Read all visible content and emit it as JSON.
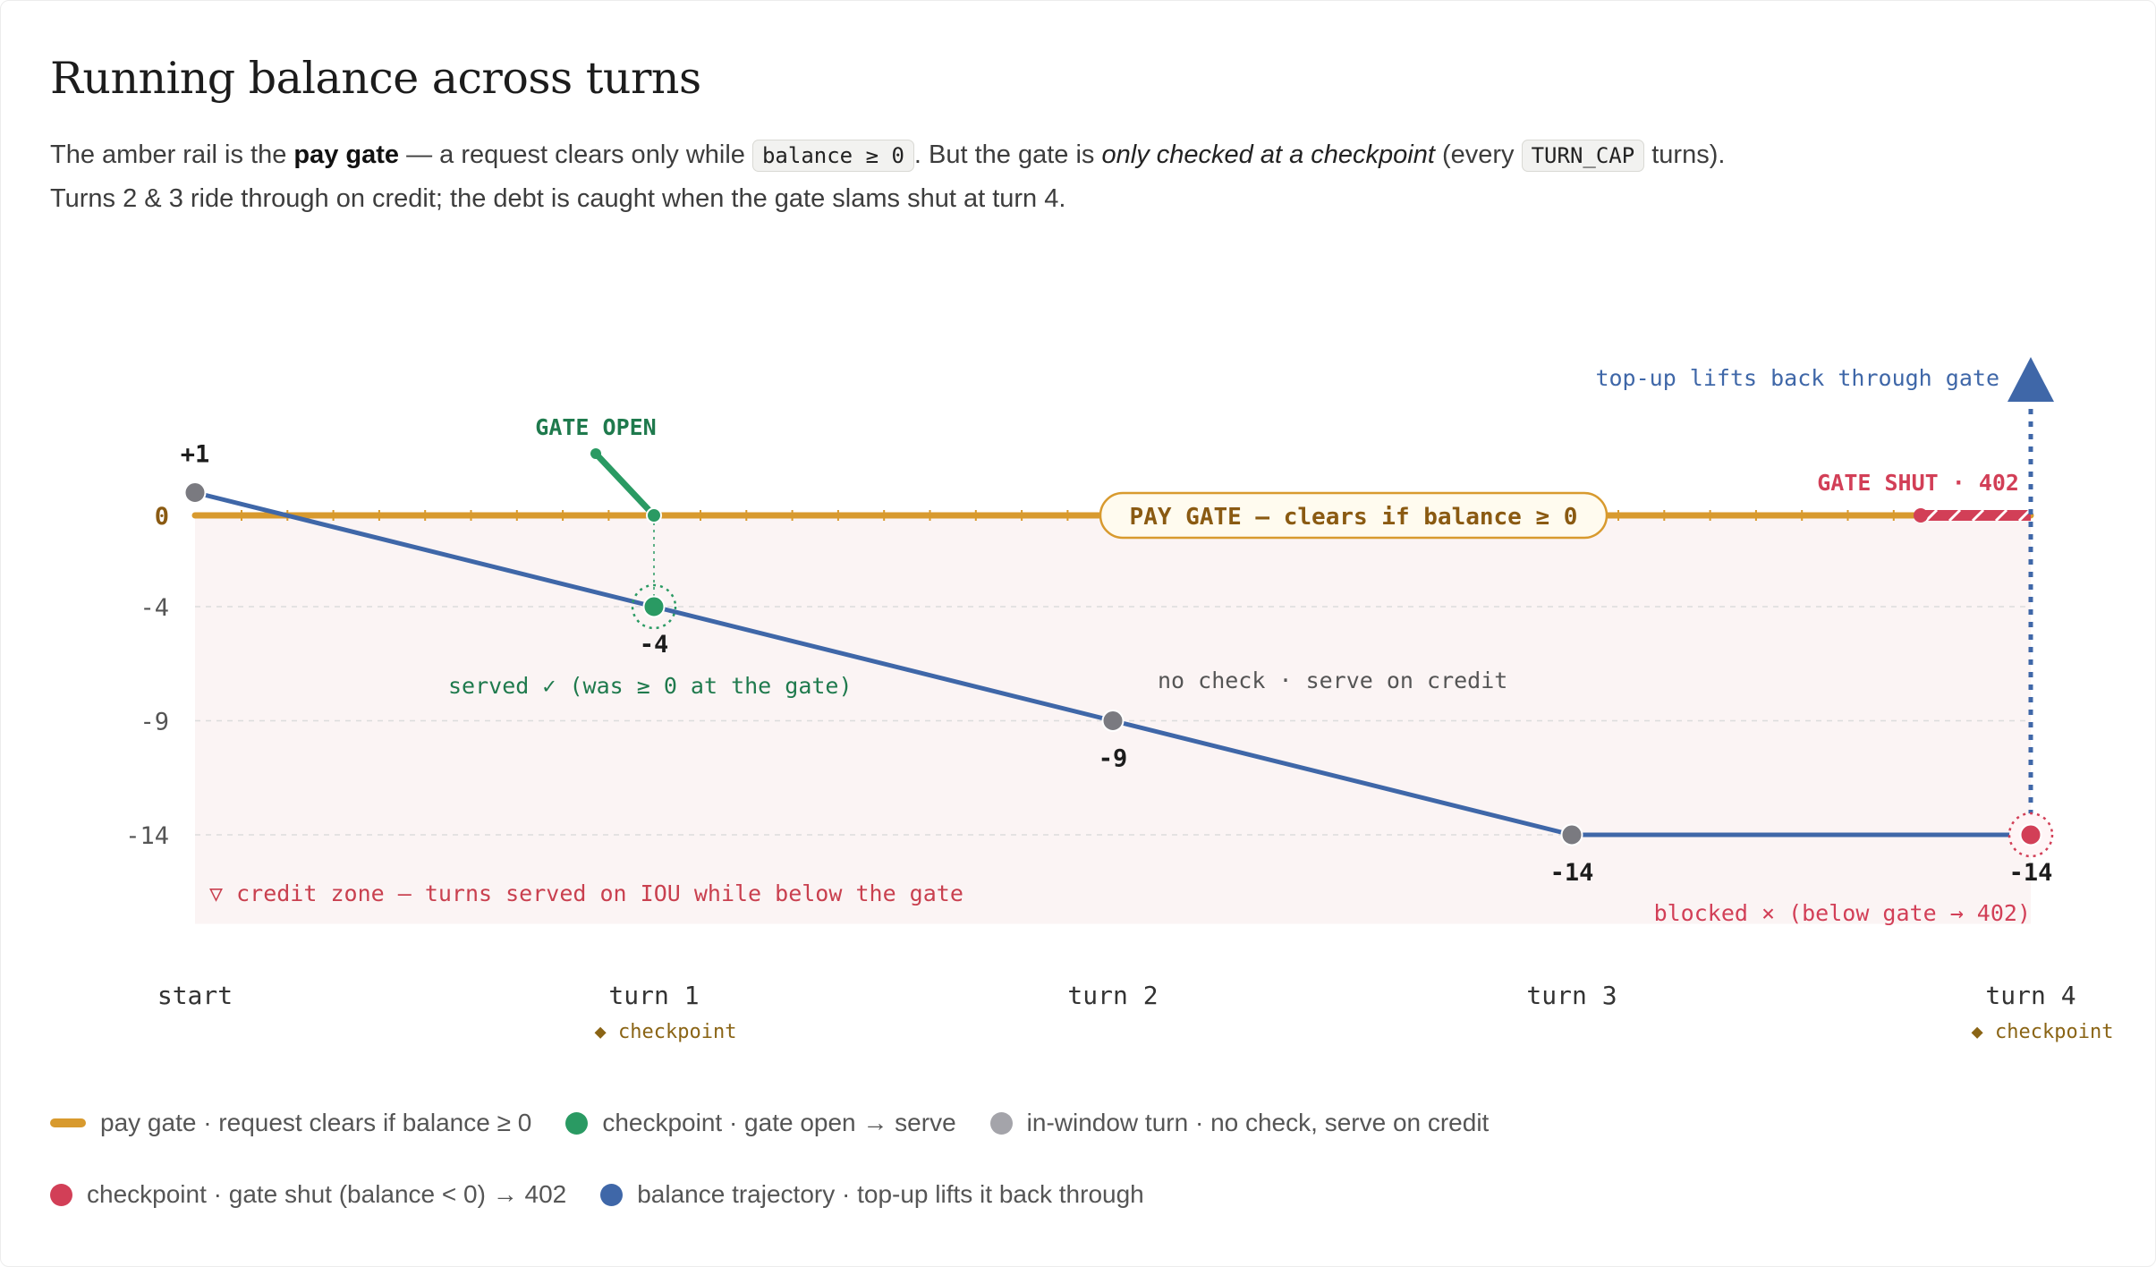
{
  "header": {
    "title": "Running balance across turns",
    "desc": {
      "p1": "The amber rail is the ",
      "b1": "pay gate",
      "p2": " — a request clears only while ",
      "code1": "balance ≥ 0",
      "p3": ". But the gate is ",
      "i1": "only checked at a checkpoint",
      "p4": " (every ",
      "code2": "TURN_CAP",
      "p5": " turns). Turns 2 & 3 ride through on credit; the debt is caught when the gate slams shut at turn 4."
    }
  },
  "colors": {
    "gate": "#d89a2e",
    "gate_text": "#8a5a12",
    "checkpoint_open": "#2a9a63",
    "in_window": "#7a7a80",
    "gate_shut": "#d23f57",
    "trajectory": "#3f67a8",
    "credit_zone": "#fbf4f4"
  },
  "chart_data": {
    "type": "line",
    "categories": [
      "start",
      "turn 1",
      "turn 2",
      "turn 3",
      "turn 4"
    ],
    "values": [
      1,
      -4,
      -9,
      -14,
      -14
    ],
    "point_labels": [
      "+1",
      "-4",
      "-9",
      "-14",
      "-14"
    ],
    "point_kinds": [
      "in-window",
      "checkpoint-open",
      "in-window",
      "in-window",
      "checkpoint-shut"
    ],
    "checkpoint_categories": [
      "turn 1",
      "turn 4"
    ],
    "checkpoint_label": "◆ checkpoint",
    "y_ticks": [
      0,
      -4,
      -9,
      -14
    ],
    "y_tick_labels": [
      "0",
      "-4",
      "-9",
      "-14"
    ],
    "ylim": [
      -17.9,
      1
    ],
    "gate_value": 0,
    "gate_label": "PAY GATE — clears if balance ≥ 0",
    "annotations": {
      "gate_open": "GATE OPEN",
      "served": "served ✓ (was ≥ 0 at the gate)",
      "no_check": "no check · serve on credit",
      "gate_shut": "GATE SHUT · 402",
      "top_up": "top-up lifts back through gate",
      "blocked": "blocked × (below gate → 402)",
      "credit_zone": "▽ credit zone — turns served on IOU while below the gate"
    },
    "legend": [
      {
        "label": "pay gate · request clears if balance ≥ 0",
        "swatch": "bar",
        "color": "#d89a2e"
      },
      {
        "label": "checkpoint · gate open → serve",
        "swatch": "dot",
        "color": "#2a9a63"
      },
      {
        "label": "in-window turn · no check, serve on credit",
        "swatch": "dot",
        "color": "#a4a4aa"
      },
      {
        "label": "checkpoint · gate shut (balance < 0) → 402",
        "swatch": "dot",
        "color": "#d23f57"
      },
      {
        "label": "balance trajectory · top-up lifts it back through",
        "swatch": "dot",
        "color": "#3f67a8"
      }
    ]
  }
}
